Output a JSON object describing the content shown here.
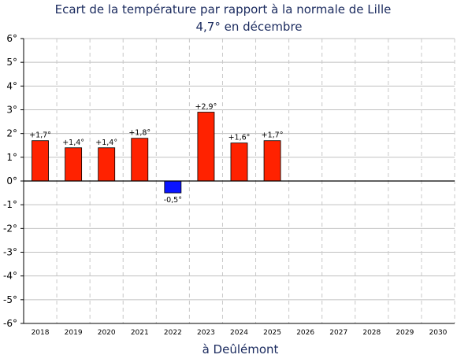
{
  "chart_data": {
    "type": "bar",
    "title": "Ecart de la température par rapport à la normale de Lille",
    "subtitle": "4,7° en décembre",
    "xlabel": "à Deûlémont",
    "ylabel": "",
    "categories": [
      "2018",
      "2019",
      "2020",
      "2021",
      "2022",
      "2023",
      "2024",
      "2025",
      "2026",
      "2027",
      "2028",
      "2029",
      "2030"
    ],
    "values": [
      1.7,
      1.4,
      1.4,
      1.8,
      -0.5,
      2.9,
      1.6,
      1.7,
      null,
      null,
      null,
      null,
      null
    ],
    "data_labels": [
      "+1,7°",
      "+1,4°",
      "+1,4°",
      "+1,8°",
      "-0,5°",
      "+2,9°",
      "+1,6°",
      "+1,7°",
      "",
      "",
      "",
      "",
      ""
    ],
    "ylim": [
      -6,
      6
    ],
    "yticks": [
      6,
      5,
      4,
      3,
      2,
      1,
      0,
      -1,
      -2,
      -3,
      -4,
      -5,
      -6
    ],
    "ytick_labels": [
      "6°",
      "5°",
      "4°",
      "3°",
      "2°",
      "1°",
      "0°",
      "-1°",
      "-2°",
      "-3°",
      "-4°",
      "-5°",
      "-6°"
    ],
    "grid": true,
    "colors": {
      "positive": "#ff2200",
      "negative": "#0a14ff",
      "title": "#1a2a5e",
      "grid_h": "#c0c0c0",
      "grid_v": "#c8c8c8"
    }
  }
}
